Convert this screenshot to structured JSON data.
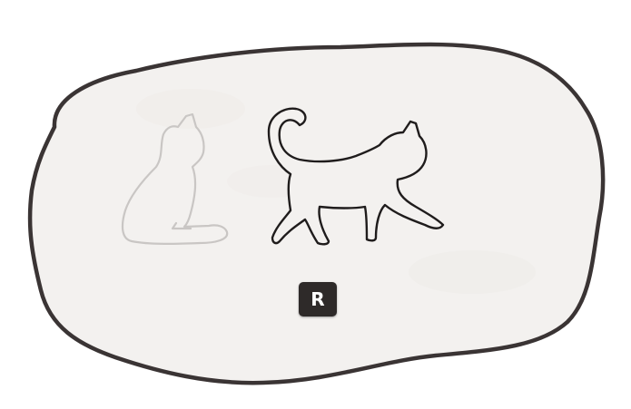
{
  "scene": {
    "description_icons": [
      "sitting-cat-icon",
      "walking-cat-icon"
    ],
    "colors": {
      "bubble_fill": "#f3f1ef",
      "bubble_outline": "#3a3434",
      "faded_cat_outline": "#c9c6c4",
      "active_cat_outline": "#1f1c1c",
      "key_background": "#2e2a29",
      "key_text": "#ffffff"
    }
  },
  "key_hint": {
    "label": "R"
  }
}
